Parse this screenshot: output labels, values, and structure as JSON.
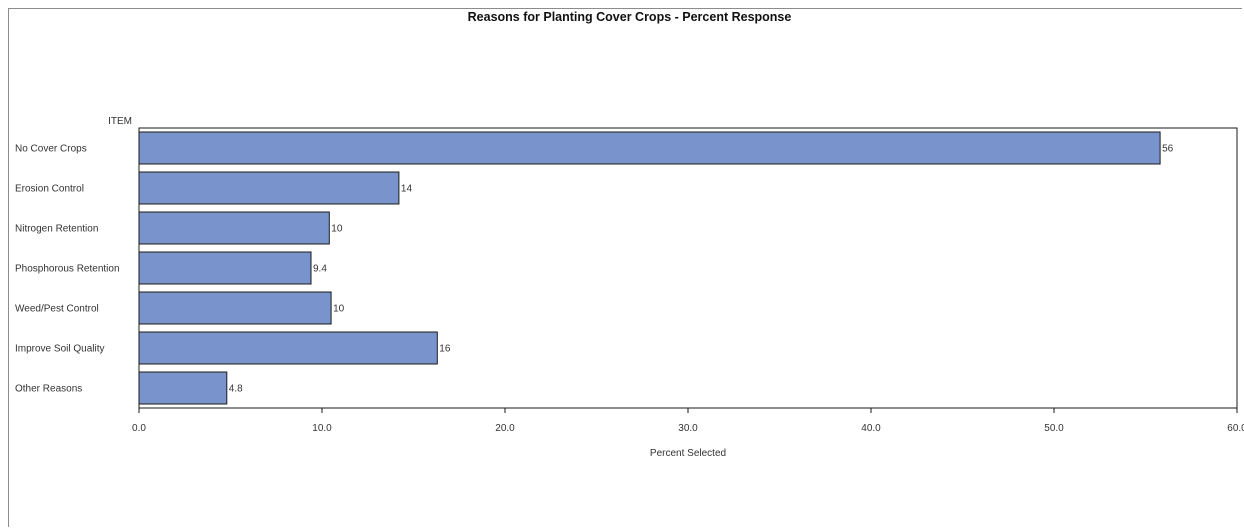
{
  "chart_data": {
    "type": "bar",
    "orientation": "horizontal",
    "title": "Reasons for Planting Cover Crops - Percent Response",
    "category_axis_label": "ITEM",
    "xlabel": "Percent Selected",
    "xlim": [
      0,
      60
    ],
    "xticks": [
      "0.0",
      "10.0",
      "20.0",
      "30.0",
      "40.0",
      "50.0",
      "60.0"
    ],
    "categories": [
      "No Cover Crops",
      "Erosion Control",
      "Nitrogen Retention",
      "Phosphorous Retention",
      "Weed/Pest Control",
      "Improve Soil Quality",
      "Other Reasons"
    ],
    "values": [
      55.8,
      14.2,
      10.4,
      9.4,
      10.5,
      16.3,
      4.8
    ],
    "value_labels": [
      "56",
      "14",
      "10",
      "9.4",
      "10",
      "16",
      "4.8"
    ],
    "bar_color": "#7994cc",
    "grid": false,
    "legend": "none"
  }
}
